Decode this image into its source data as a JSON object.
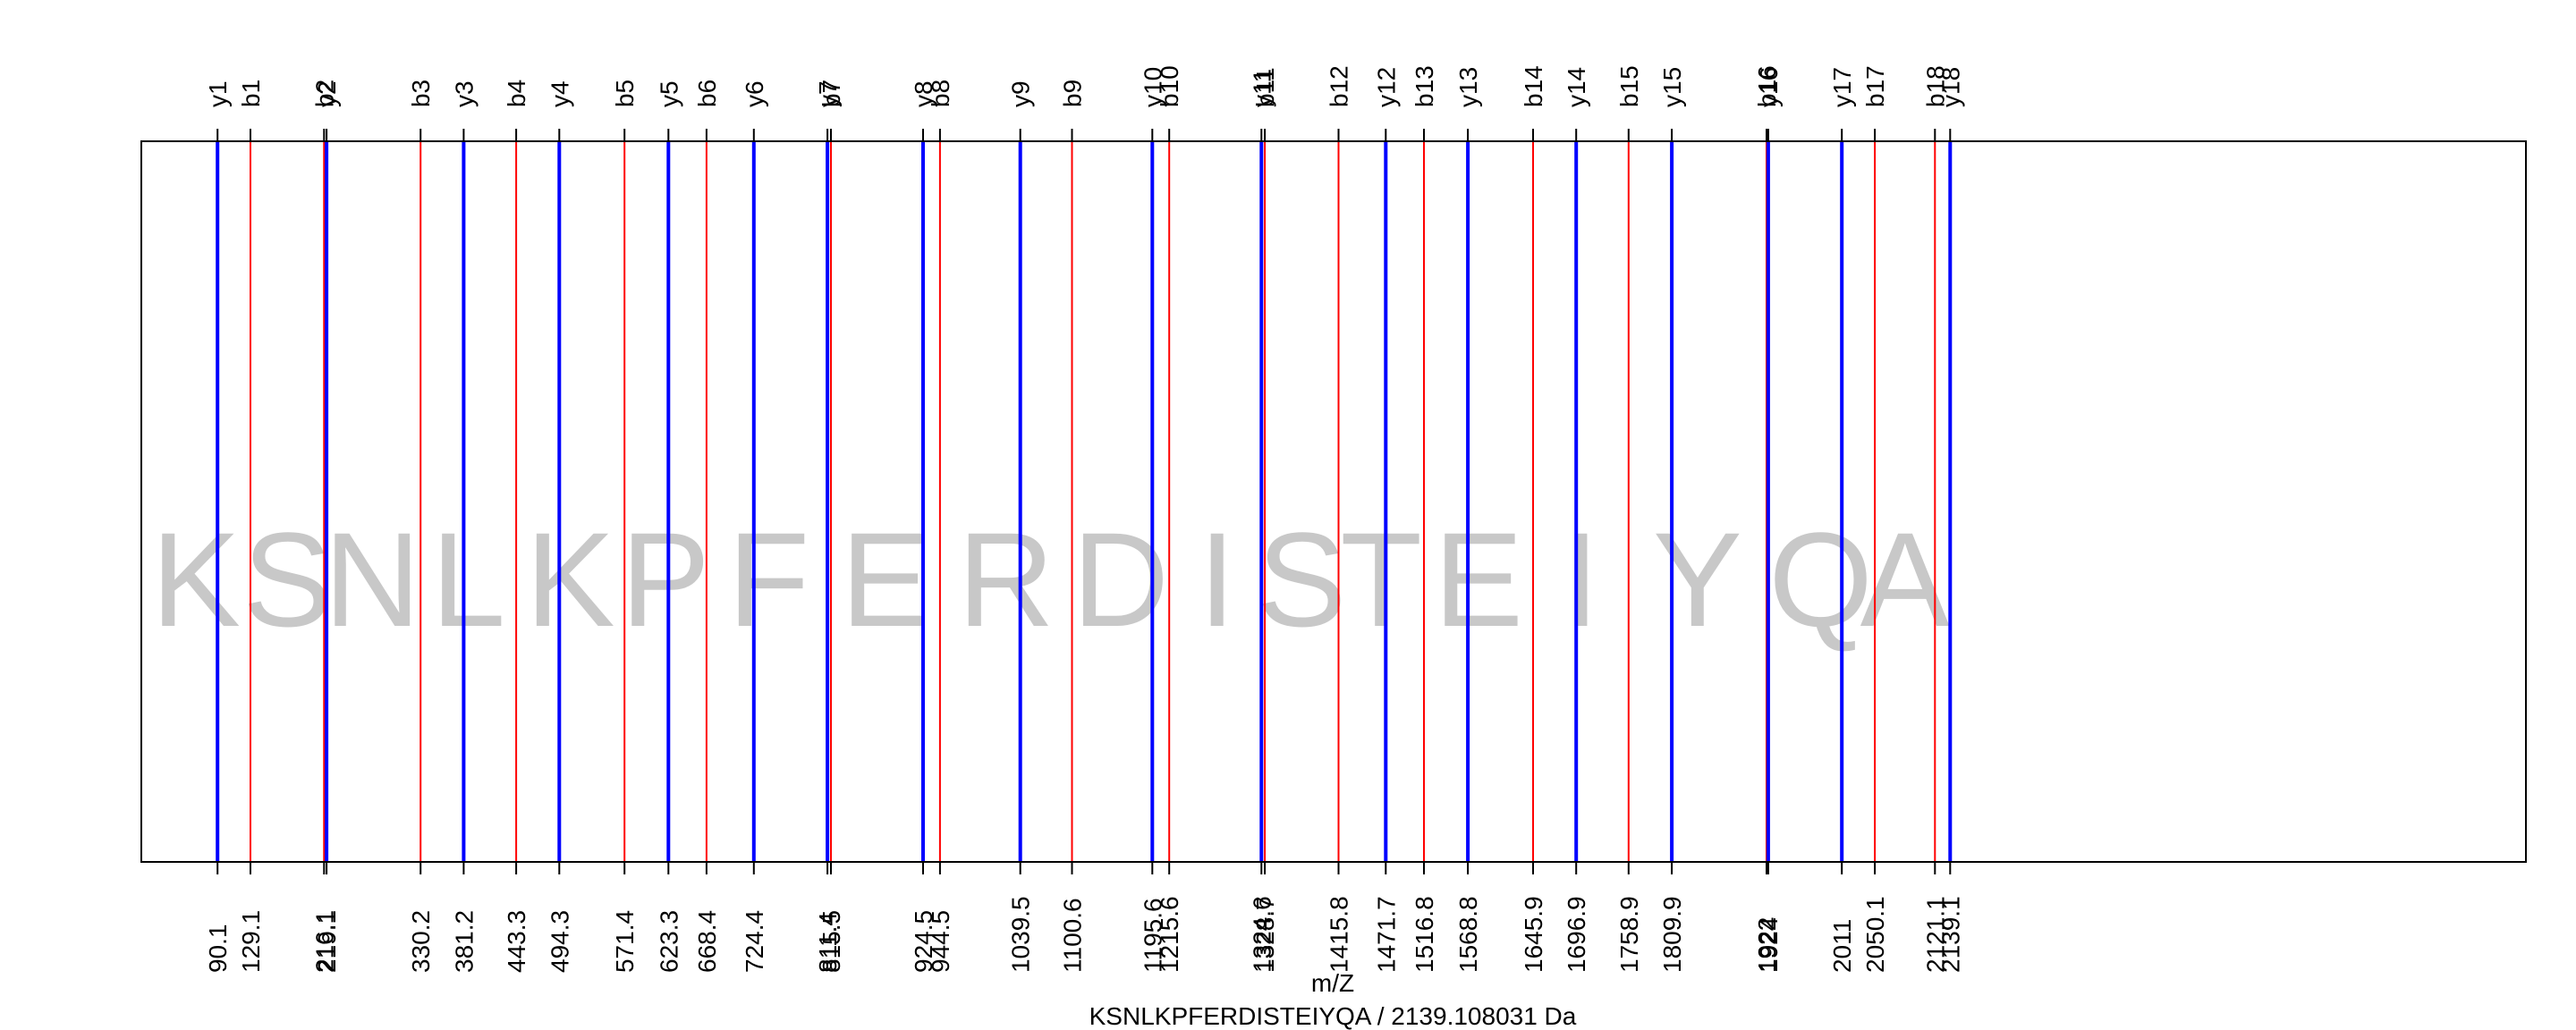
{
  "chart_data": {
    "type": "line",
    "title": "",
    "xlabel": "m/Z",
    "footer": "KSNLKPFERDISTEIYQA / 2139.108031 Da",
    "xlim": [
      0,
      2820
    ],
    "grid": false,
    "sequence": [
      "K",
      "S",
      "N",
      "L",
      "K",
      "P",
      "F",
      "E",
      "R",
      "D",
      "I",
      "S",
      "T",
      "E",
      "I",
      "Y",
      "Q",
      "A"
    ],
    "series": [
      {
        "name": "b",
        "color": "#ff0000",
        "labels": [
          "b1",
          "b2",
          "b3",
          "b4",
          "b5",
          "b6",
          "b7",
          "b8",
          "b9",
          "b10",
          "b11",
          "b12",
          "b13",
          "b14",
          "b15",
          "b16",
          "b17",
          "b18"
        ],
        "mz_labels": [
          "129.1",
          "216.1",
          "330.2",
          "443.3",
          "571.4",
          "668.4",
          "815.5",
          "944.5",
          "1100.6",
          "1215.6",
          "1328.7",
          "1415.8",
          "1516.8",
          "1645.9",
          "1758.9",
          "1922",
          "2050.1",
          "2121.1"
        ],
        "values": [
          129.1,
          216.1,
          330.2,
          443.3,
          571.4,
          668.4,
          815.5,
          944.5,
          1100.6,
          1215.6,
          1328.7,
          1415.8,
          1516.8,
          1645.9,
          1758.9,
          1922.0,
          2050.1,
          2121.1
        ]
      },
      {
        "name": "y",
        "color": "#0000ff",
        "labels": [
          "y1",
          "y2",
          "y3",
          "y4",
          "y5",
          "y6",
          "y7",
          "y8",
          "y9",
          "y10",
          "y11",
          "y12",
          "y13",
          "y14",
          "y15",
          "y16",
          "y17",
          "y18"
        ],
        "mz_labels": [
          "90.1",
          "219.1",
          "381.2",
          "494.3",
          "623.3",
          "724.4",
          "811.4",
          "924.5",
          "1039.5",
          "1195.6",
          "1324.6",
          "1471.7",
          "1568.8",
          "1696.9",
          "1809.9",
          "1924",
          "2011",
          "2139.1"
        ],
        "values": [
          90.1,
          219.1,
          381.2,
          494.3,
          623.3,
          724.4,
          811.4,
          924.5,
          1039.5,
          1195.6,
          1324.6,
          1471.7,
          1568.8,
          1696.9,
          1809.9,
          1924.0,
          2011.0,
          2139.1
        ]
      }
    ]
  }
}
